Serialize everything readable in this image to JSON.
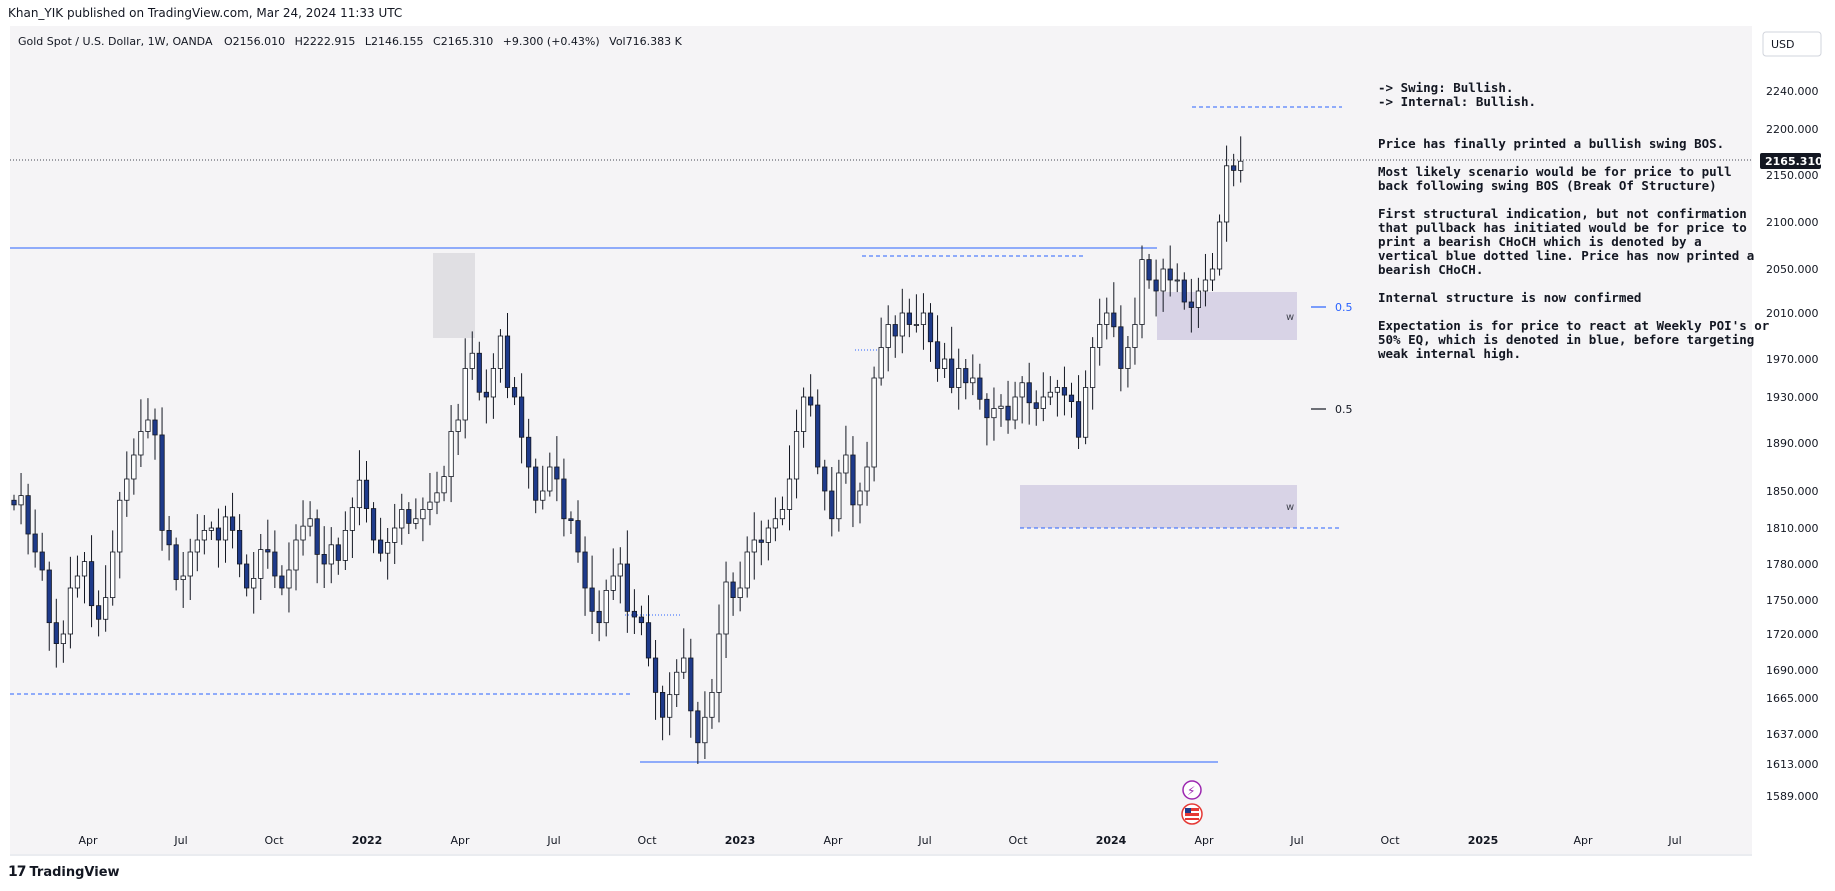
{
  "header": {
    "published": "Khan_YIK published on TradingView.com, Mar 24, 2024 11:33 UTC"
  },
  "symbol_bar": {
    "name": "Gold Spot / U.S. Dollar, 1W, OANDA",
    "open": "O2156.010",
    "high": "H2222.915",
    "low": "L2146.155",
    "close": "C2165.310",
    "change": "+9.300 (+0.43%)",
    "volume": "Vol716.383 K"
  },
  "currency_button": "USD",
  "footer": {
    "brand": "TradingView"
  },
  "colors": {
    "bull_body": "#ffffff",
    "bear_body": "#1e3a8a",
    "wick": "#131722",
    "level_line": "#2962ff",
    "zone_fill": "#d8d3e6",
    "chart_bg": "#f5f4f6",
    "last_price_bg": "#131722"
  },
  "chart_data": {
    "type": "candlestick",
    "title": "Gold Spot / U.S. Dollar, 1W, OANDA",
    "y_ticks": [
      "2240.000",
      "2200.000",
      "2150.000",
      "2100.000",
      "2050.000",
      "2010.000",
      "1970.000",
      "1930.000",
      "1890.000",
      "1850.000",
      "1810.000",
      "1780.000",
      "1750.000",
      "1720.000",
      "1690.000",
      "1665.000",
      "1637.000",
      "1613.000",
      "1589.000"
    ],
    "x_ticks": [
      "Apr",
      "Jul",
      "Oct",
      "2022",
      "Apr",
      "Jul",
      "Oct",
      "2023",
      "Apr",
      "Jul",
      "Oct",
      "2024",
      "Apr",
      "Jul",
      "Oct",
      "2025",
      "Apr",
      "Jul"
    ],
    "last_price": "2165.310",
    "candle_closes": [
      1835,
      1845,
      1805,
      1790,
      1775,
      1730,
      1712,
      1720,
      1760,
      1770,
      1782,
      1745,
      1733,
      1752,
      1790,
      1840,
      1860,
      1880,
      1900,
      1910,
      1897,
      1808,
      1796,
      1767,
      1770,
      1790,
      1800,
      1808,
      1810,
      1800,
      1822,
      1808,
      1780,
      1760,
      1768,
      1792,
      1790,
      1770,
      1760,
      1775,
      1800,
      1812,
      1820,
      1788,
      1780,
      1796,
      1783,
      1808,
      1832,
      1859,
      1831,
      1800,
      1789,
      1798,
      1810,
      1830,
      1815,
      1820,
      1830,
      1838,
      1848,
      1862,
      1900,
      1910,
      1960,
      1975,
      1935,
      1930,
      1960,
      1990,
      1940,
      1930,
      1895,
      1870,
      1840,
      1850,
      1870,
      1860,
      1820,
      1818,
      1790,
      1760,
      1740,
      1730,
      1758,
      1770,
      1780,
      1740,
      1735,
      1730,
      1700,
      1670,
      1650,
      1668,
      1688,
      1700,
      1655,
      1630,
      1650,
      1670,
      1720,
      1765,
      1752,
      1760,
      1790,
      1800,
      1798,
      1810,
      1820,
      1830,
      1860,
      1900,
      1930,
      1923,
      1870,
      1850,
      1820,
      1865,
      1880,
      1835,
      1850,
      1870,
      1950,
      1980,
      2000,
      1990,
      2010,
      2000,
      2000,
      2010,
      1985,
      1960,
      1970,
      1940,
      1960,
      1945,
      1950,
      1928,
      1912,
      1920,
      1922,
      1910,
      1930,
      1945,
      1925,
      1920,
      1930,
      1935,
      1940,
      1932,
      1926,
      1895,
      1940,
      1980,
      2000,
      2010,
      1998,
      1960,
      1980,
      2000,
      2060,
      2040,
      2030,
      2050,
      2040,
      2040,
      2020,
      2015,
      2030,
      2040,
      2050,
      2100,
      2160,
      2155,
      2165
    ],
    "annotations": {
      "lines": [
        "-> Swing: Bullish.",
        "-> Internal: Bullish."
      ],
      "bos": "Price has finally printed a bullish swing BOS.",
      "scenario": [
        "Most likely scenario would be for price to pull",
        "back following swing BOS (Break Of Structure)"
      ],
      "choch": [
        "First structural indication, but not confirmation",
        "that pullback has initiated would be for price to",
        "print a bearish CHoCH which is denoted by a",
        "vertical blue dotted line.  Price has now printed a",
        "bearish CHoCH."
      ],
      "confirmed": "Internal structure is now confirmed",
      "expectation": [
        "Expectation is for price to react at Weekly POI's or",
        "50% EQ, which is denoted in blue, before targeting",
        "weak internal high."
      ]
    },
    "zone_labels": {
      "upper_mid": "0.5",
      "lower_mid": "0.5",
      "upper_zone": "w",
      "lower_zone": "w"
    }
  }
}
